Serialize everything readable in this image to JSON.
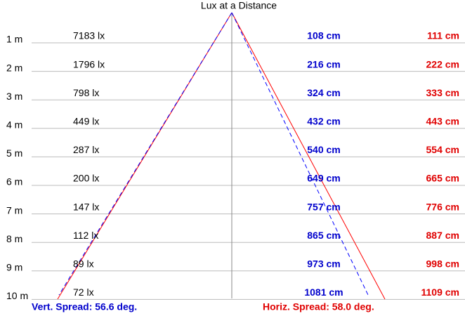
{
  "title": "Lux at a Distance",
  "rows": [
    {
      "distance": "1 m",
      "lux": "7183 lx",
      "vertical": "108 cm",
      "horizontal": "111 cm"
    },
    {
      "distance": "2 m",
      "lux": "1796 lx",
      "vertical": "216 cm",
      "horizontal": "222 cm"
    },
    {
      "distance": "3 m",
      "lux": "798 lx",
      "vertical": "324 cm",
      "horizontal": "333 cm"
    },
    {
      "distance": "4 m",
      "lux": "449 lx",
      "vertical": "432 cm",
      "horizontal": "443 cm"
    },
    {
      "distance": "5 m",
      "lux": "287 lx",
      "vertical": "540 cm",
      "horizontal": "554 cm"
    },
    {
      "distance": "6 m",
      "lux": "200 lx",
      "vertical": "649 cm",
      "horizontal": "665 cm"
    },
    {
      "distance": "7 m",
      "lux": "147 lx",
      "vertical": "757 cm",
      "horizontal": "776 cm"
    },
    {
      "distance": "8 m",
      "lux": "112 lx",
      "vertical": "865 cm",
      "horizontal": "887 cm"
    },
    {
      "distance": "9 m",
      "lux": "89 lx",
      "vertical": "973 cm",
      "horizontal": "998 cm"
    },
    {
      "distance": "10 m",
      "lux": "72 lx",
      "vertical": "1081 cm",
      "horizontal": "1109 cm"
    }
  ],
  "vertical_spread": "Vert. Spread: 56.6 deg.",
  "horizontal_spread": "Horiz. Spread: 58.0 deg."
}
